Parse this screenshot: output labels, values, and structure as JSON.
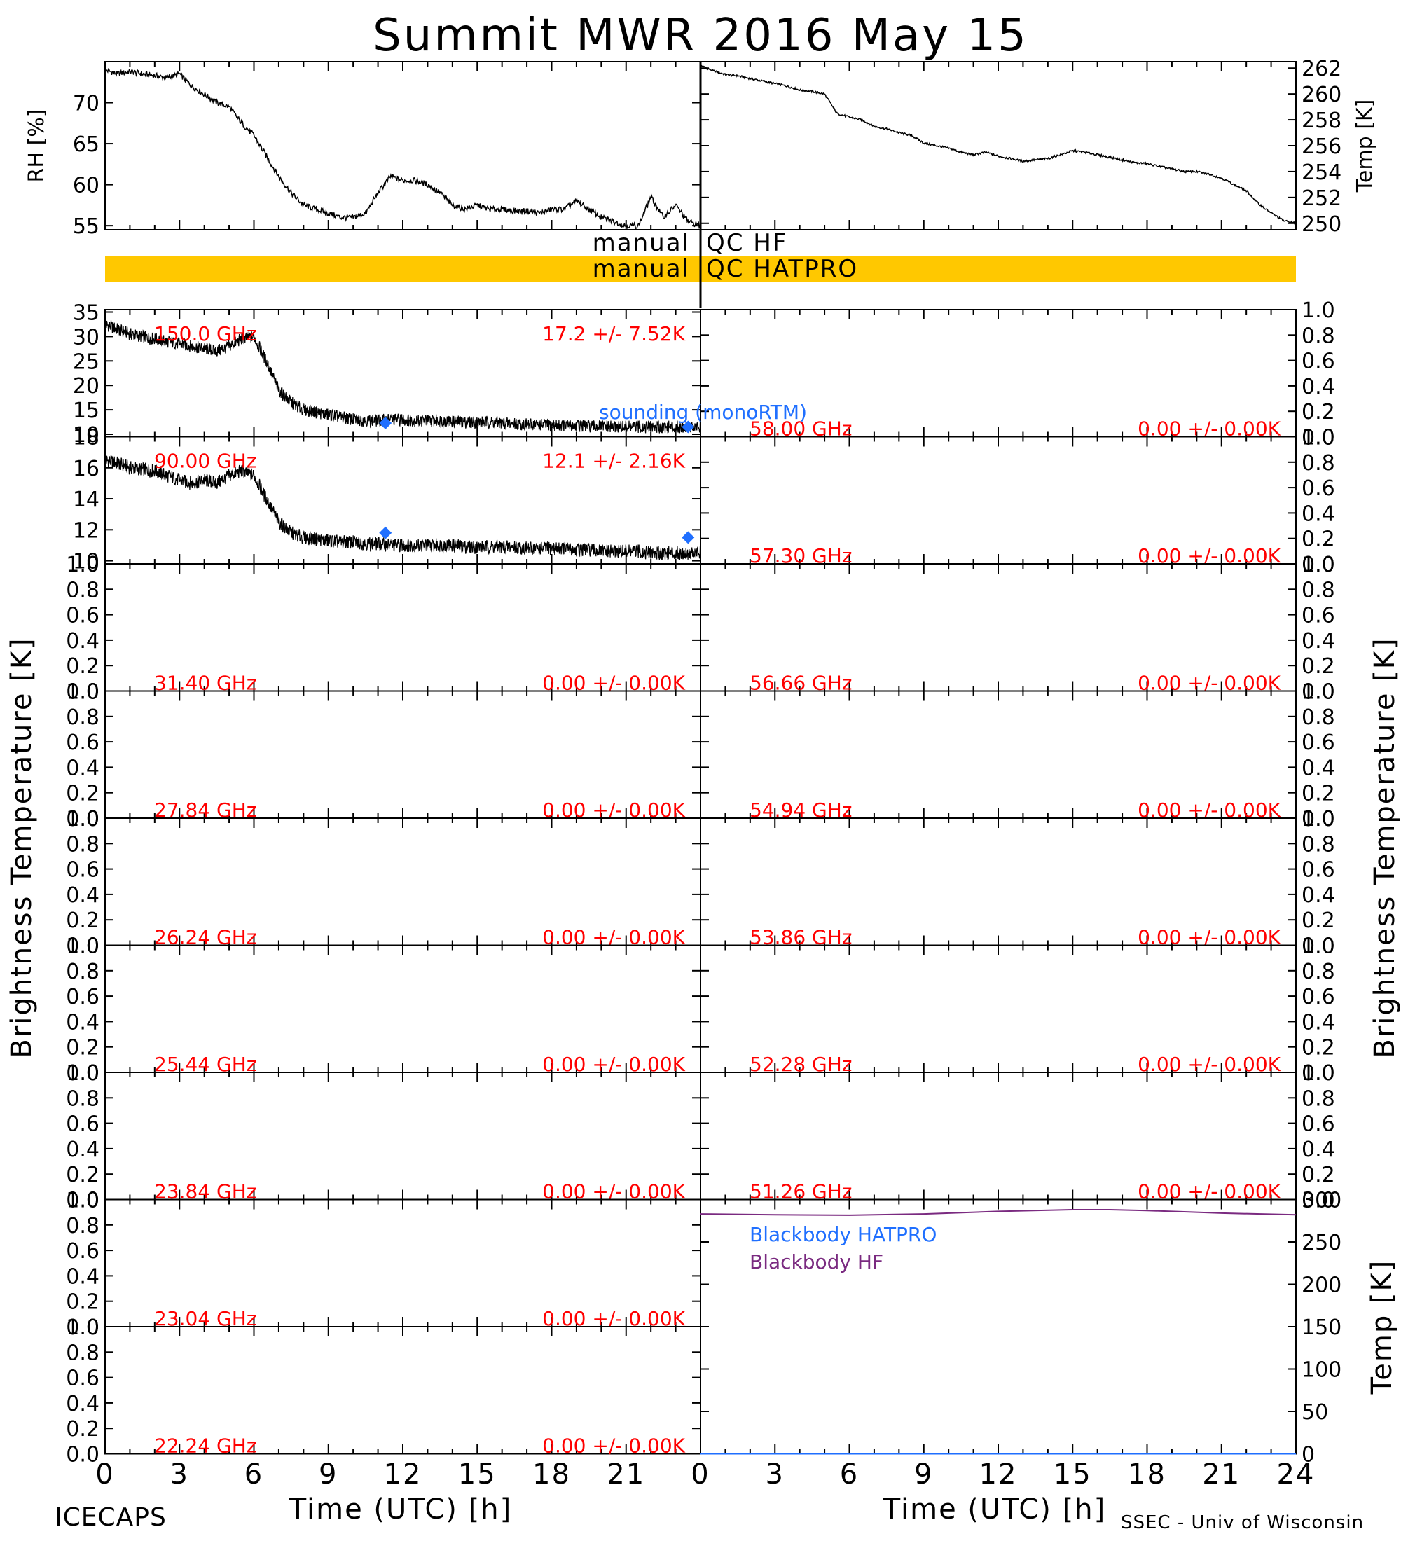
{
  "title": "Summit MWR 2016 May 15",
  "footer": {
    "left": "ICECAPS",
    "right": "SSEC - Univ of Wisconsin",
    "xlabel": "Time (UTC) [h]"
  },
  "x_ticks": [
    "0",
    "3",
    "6",
    "9",
    "12",
    "15",
    "18",
    "21",
    "24"
  ],
  "left_axis_title": "Brightness Temperature [K]",
  "right_axis_title": "Brightness Temperature [K]",
  "colors": {
    "channel_label": "#ff0000",
    "sounding": "#1f6fff",
    "qc_bar": "#ffc800",
    "blackbody_hatpro": "#1f6fff",
    "blackbody_hf": "#7a2a80"
  },
  "qc": {
    "hf": {
      "left": "manual",
      "right": "QC HF"
    },
    "hatpro": {
      "left": "manual",
      "right": "QC HATPRO"
    }
  },
  "sounding_label": "sounding (monoRTM)",
  "legend": {
    "hatpro": "Blackbody HATPRO",
    "hf": "Blackbody HF"
  },
  "chart_data": [
    {
      "id": "rh",
      "type": "line",
      "ylabel": "RH [%]",
      "ylim": [
        54.5,
        75
      ],
      "yticks": [
        "55",
        "60",
        "65",
        "70"
      ],
      "xlim": [
        0,
        24
      ],
      "series": [
        {
          "x": [
            0,
            0.5,
            1,
            1.5,
            2,
            2.5,
            3,
            3.5,
            4,
            4.5,
            5,
            5.5,
            6,
            6.5,
            7,
            7.5,
            8,
            8.5,
            9,
            9.5,
            10,
            10.5,
            11,
            11.5,
            12,
            12.5,
            13,
            13.5,
            14,
            14.5,
            15,
            15.5,
            16,
            16.5,
            17,
            17.5,
            18,
            18.5,
            19,
            19.5,
            20,
            20.5,
            21,
            21.5,
            22,
            22.5,
            23,
            23.5,
            24
          ],
          "y": [
            74,
            73.5,
            73.8,
            73.5,
            73.3,
            73,
            73.5,
            72,
            71,
            70,
            69.5,
            67.5,
            66,
            63.5,
            61,
            59,
            57.5,
            57,
            56.5,
            56,
            56,
            56.5,
            59,
            61,
            60.5,
            60.5,
            60,
            59,
            57.5,
            57,
            57.5,
            57,
            57,
            56.8,
            56.8,
            56.5,
            57,
            57,
            58,
            57,
            56,
            55.5,
            55,
            55,
            58.5,
            56,
            57.5,
            55.5,
            55
          ]
        }
      ]
    },
    {
      "id": "temp",
      "type": "line",
      "ylabel": "Temp [K]",
      "ylim": [
        249.5,
        262.5
      ],
      "yticks": [
        "250",
        "252",
        "254",
        "256",
        "258",
        "260",
        "262"
      ],
      "xlim": [
        0,
        24
      ],
      "series": [
        {
          "x": [
            0,
            0.5,
            1,
            1.5,
            2,
            2.5,
            3,
            3.5,
            4,
            4.5,
            5,
            5.5,
            6,
            6.5,
            7,
            7.5,
            8,
            8.5,
            9,
            9.5,
            10,
            10.5,
            11,
            11.5,
            12,
            12.5,
            13,
            13.5,
            14,
            14.5,
            15,
            15.5,
            16,
            16.5,
            17,
            17.5,
            18,
            18.5,
            19,
            19.5,
            20,
            20.5,
            21,
            21.5,
            22,
            22.5,
            23,
            23.5,
            24
          ],
          "y": [
            262.2,
            261.8,
            261.5,
            261.4,
            261.2,
            261,
            260.8,
            260.6,
            260.3,
            260.2,
            260,
            258.5,
            258.2,
            258,
            257.5,
            257.3,
            257,
            256.8,
            256.2,
            256,
            255.8,
            255.5,
            255.3,
            255.5,
            255.2,
            255,
            254.8,
            254.9,
            255,
            255.3,
            255.6,
            255.5,
            255.3,
            255.1,
            254.9,
            254.7,
            254.6,
            254.4,
            254.2,
            254,
            254,
            253.8,
            253.5,
            253,
            252.5,
            251.5,
            250.8,
            250.2,
            250
          ]
        }
      ]
    },
    {
      "id": "ch-150",
      "type": "line",
      "label": "150.0 GHz",
      "stat": "17.2 +/-  7.52K",
      "ylim": [
        9.5,
        35.5
      ],
      "yticks": [
        "10",
        "15",
        "20",
        "25",
        "30",
        "35"
      ],
      "xlim": [
        0,
        24
      ],
      "series": [
        {
          "x": [
            0,
            0.5,
            1,
            1.5,
            2,
            2.5,
            3,
            3.5,
            4,
            4.5,
            5,
            5.5,
            6,
            6.5,
            7,
            7.5,
            8,
            8.5,
            9,
            9.5,
            10,
            10.5,
            11,
            11.5,
            12,
            12.5,
            13,
            13.5,
            14,
            14.5,
            15,
            15.5,
            16,
            16.5,
            17,
            17.5,
            18,
            18.5,
            19,
            19.5,
            20,
            20.5,
            21,
            21.5,
            22,
            22.5,
            23,
            23.5,
            24
          ],
          "y": [
            32.5,
            31.5,
            30.5,
            30,
            29.5,
            29,
            28.5,
            28,
            27.5,
            27,
            28,
            29.5,
            30,
            25,
            19,
            16.5,
            15,
            14.5,
            14,
            13.5,
            13,
            12.8,
            12.8,
            13,
            13,
            12.8,
            12.8,
            12.8,
            12.6,
            12.5,
            12.5,
            12.5,
            12.3,
            12.2,
            12,
            12,
            11.8,
            11.8,
            11.8,
            11.6,
            11.6,
            11.5,
            11.5,
            11.5,
            11.5,
            11.5,
            11.5,
            11.5,
            11.4
          ]
        }
      ],
      "sounding": {
        "x": [
          11.3,
          23.5
        ],
        "y": [
          12.3,
          11.5
        ]
      }
    },
    {
      "id": "ch-90",
      "type": "line",
      "label": "90.00 GHz",
      "stat": "12.1 +/-  2.16K",
      "ylim": [
        9.8,
        18
      ],
      "yticks": [
        "10",
        "12",
        "14",
        "16",
        "18"
      ],
      "xlim": [
        0,
        24
      ],
      "series": [
        {
          "x": [
            0,
            0.5,
            1,
            1.5,
            2,
            2.5,
            3,
            3.5,
            4,
            4.5,
            5,
            5.5,
            6,
            6.5,
            7,
            7.5,
            8,
            8.5,
            9,
            9.5,
            10,
            10.5,
            11,
            11.5,
            12,
            12.5,
            13,
            13.5,
            14,
            14.5,
            15,
            15.5,
            16,
            16.5,
            17,
            17.5,
            18,
            18.5,
            19,
            19.5,
            20,
            20.5,
            21,
            21.5,
            22,
            22.5,
            23,
            23.5,
            24
          ],
          "y": [
            16.5,
            16.3,
            16,
            15.9,
            15.8,
            15.5,
            15.2,
            15,
            15.2,
            15,
            15.5,
            15.8,
            15.5,
            14,
            12.5,
            11.8,
            11.5,
            11.4,
            11.3,
            11.2,
            11.2,
            11.1,
            11.1,
            11,
            11,
            11,
            11,
            11,
            11,
            10.9,
            10.9,
            10.9,
            10.9,
            10.9,
            10.8,
            10.8,
            10.8,
            10.8,
            10.7,
            10.7,
            10.6,
            10.6,
            10.6,
            10.6,
            10.5,
            10.5,
            10.5,
            10.5,
            10.5
          ]
        }
      ],
      "sounding": {
        "x": [
          11.3,
          23.5
        ],
        "y": [
          11.8,
          11.5
        ]
      }
    },
    {
      "id": "ch-58",
      "type": "line",
      "label": "58.00 GHz",
      "stat": "0.00 +/-  0.00K",
      "ylim": [
        0,
        1
      ],
      "yticks": [
        "0.0",
        "0.2",
        "0.4",
        "0.6",
        "0.8",
        "1.0"
      ],
      "xlim": [
        0,
        24
      ],
      "sounding_label_here": true
    },
    {
      "id": "ch-5730",
      "type": "line",
      "label": "57.30 GHz",
      "stat": "0.00 +/-  0.00K",
      "ylim": [
        0,
        1
      ],
      "yticks": [
        "0.0",
        "0.2",
        "0.4",
        "0.6",
        "0.8",
        "1.0"
      ],
      "xlim": [
        0,
        24
      ]
    },
    {
      "id": "ch-3140",
      "type": "line",
      "label": "31.40 GHz",
      "stat": "0.00 +/-  0.00K",
      "ylim": [
        0,
        1
      ],
      "yticks": [
        "0.0",
        "0.2",
        "0.4",
        "0.6",
        "0.8",
        "1.0"
      ],
      "xlim": [
        0,
        24
      ]
    },
    {
      "id": "ch-5666",
      "type": "line",
      "label": "56.66 GHz",
      "stat": "0.00 +/-  0.00K",
      "ylim": [
        0,
        1
      ],
      "yticks": [
        "0.0",
        "0.2",
        "0.4",
        "0.6",
        "0.8",
        "1.0"
      ],
      "xlim": [
        0,
        24
      ]
    },
    {
      "id": "ch-2784",
      "type": "line",
      "label": "27.84 GHz",
      "stat": "0.00 +/-  0.00K",
      "ylim": [
        0,
        1
      ],
      "yticks": [
        "0.0",
        "0.2",
        "0.4",
        "0.6",
        "0.8",
        "1.0"
      ],
      "xlim": [
        0,
        24
      ]
    },
    {
      "id": "ch-5494",
      "type": "line",
      "label": "54.94 GHz",
      "stat": "0.00 +/-  0.00K",
      "ylim": [
        0,
        1
      ],
      "yticks": [
        "0.0",
        "0.2",
        "0.4",
        "0.6",
        "0.8",
        "1.0"
      ],
      "xlim": [
        0,
        24
      ]
    },
    {
      "id": "ch-2624",
      "type": "line",
      "label": "26.24 GHz",
      "stat": "0.00 +/-  0.00K",
      "ylim": [
        0,
        1
      ],
      "yticks": [
        "0.0",
        "0.2",
        "0.4",
        "0.6",
        "0.8",
        "1.0"
      ],
      "xlim": [
        0,
        24
      ]
    },
    {
      "id": "ch-5386",
      "type": "line",
      "label": "53.86 GHz",
      "stat": "0.00 +/-  0.00K",
      "ylim": [
        0,
        1
      ],
      "yticks": [
        "0.0",
        "0.2",
        "0.4",
        "0.6",
        "0.8",
        "1.0"
      ],
      "xlim": [
        0,
        24
      ]
    },
    {
      "id": "ch-2544",
      "type": "line",
      "label": "25.44 GHz",
      "stat": "0.00 +/-  0.00K",
      "ylim": [
        0,
        1
      ],
      "yticks": [
        "0.0",
        "0.2",
        "0.4",
        "0.6",
        "0.8",
        "1.0"
      ],
      "xlim": [
        0,
        24
      ]
    },
    {
      "id": "ch-5228",
      "type": "line",
      "label": "52.28 GHz",
      "stat": "0.00 +/-  0.00K",
      "ylim": [
        0,
        1
      ],
      "yticks": [
        "0.0",
        "0.2",
        "0.4",
        "0.6",
        "0.8",
        "1.0"
      ],
      "xlim": [
        0,
        24
      ]
    },
    {
      "id": "ch-2384",
      "type": "line",
      "label": "23.84 GHz",
      "stat": "0.00 +/-  0.00K",
      "ylim": [
        0,
        1
      ],
      "yticks": [
        "0.0",
        "0.2",
        "0.4",
        "0.6",
        "0.8",
        "1.0"
      ],
      "xlim": [
        0,
        24
      ]
    },
    {
      "id": "ch-5126",
      "type": "line",
      "label": "51.26 GHz",
      "stat": "0.00 +/-  0.00K",
      "ylim": [
        0,
        1
      ],
      "yticks": [
        "0.0",
        "0.2",
        "0.4",
        "0.6",
        "0.8",
        "1.0"
      ],
      "xlim": [
        0,
        24
      ]
    },
    {
      "id": "ch-2304",
      "type": "line",
      "label": "23.04 GHz",
      "stat": "0.00 +/-  0.00K",
      "ylim": [
        0,
        1
      ],
      "yticks": [
        "0.0",
        "0.2",
        "0.4",
        "0.6",
        "0.8",
        "1.0"
      ],
      "xlim": [
        0,
        24
      ]
    },
    {
      "id": "blackbody",
      "type": "line",
      "ylabel": "Temp [K]",
      "ylim": [
        0,
        300
      ],
      "yticks": [
        "0",
        "50",
        "100",
        "150",
        "200",
        "250",
        "300"
      ],
      "xlim": [
        0,
        24
      ],
      "series": [
        {
          "name": "Blackbody HATPRO",
          "x": [
            0,
            24
          ],
          "y": [
            0,
            0
          ]
        },
        {
          "name": "Blackbody HF",
          "x": [
            0,
            3,
            6,
            9,
            12,
            15,
            16.5,
            18,
            21,
            24
          ],
          "y": [
            283,
            282,
            281.5,
            283,
            286,
            288,
            288,
            287,
            284,
            282
          ]
        }
      ]
    },
    {
      "id": "ch-2224",
      "type": "line",
      "label": "22.24 GHz",
      "stat": "0.00 +/-  0.00K",
      "ylim": [
        0,
        1
      ],
      "yticks": [
        "0.0",
        "0.2",
        "0.4",
        "0.6",
        "0.8",
        "1.0"
      ],
      "xlim": [
        0,
        24
      ]
    }
  ]
}
